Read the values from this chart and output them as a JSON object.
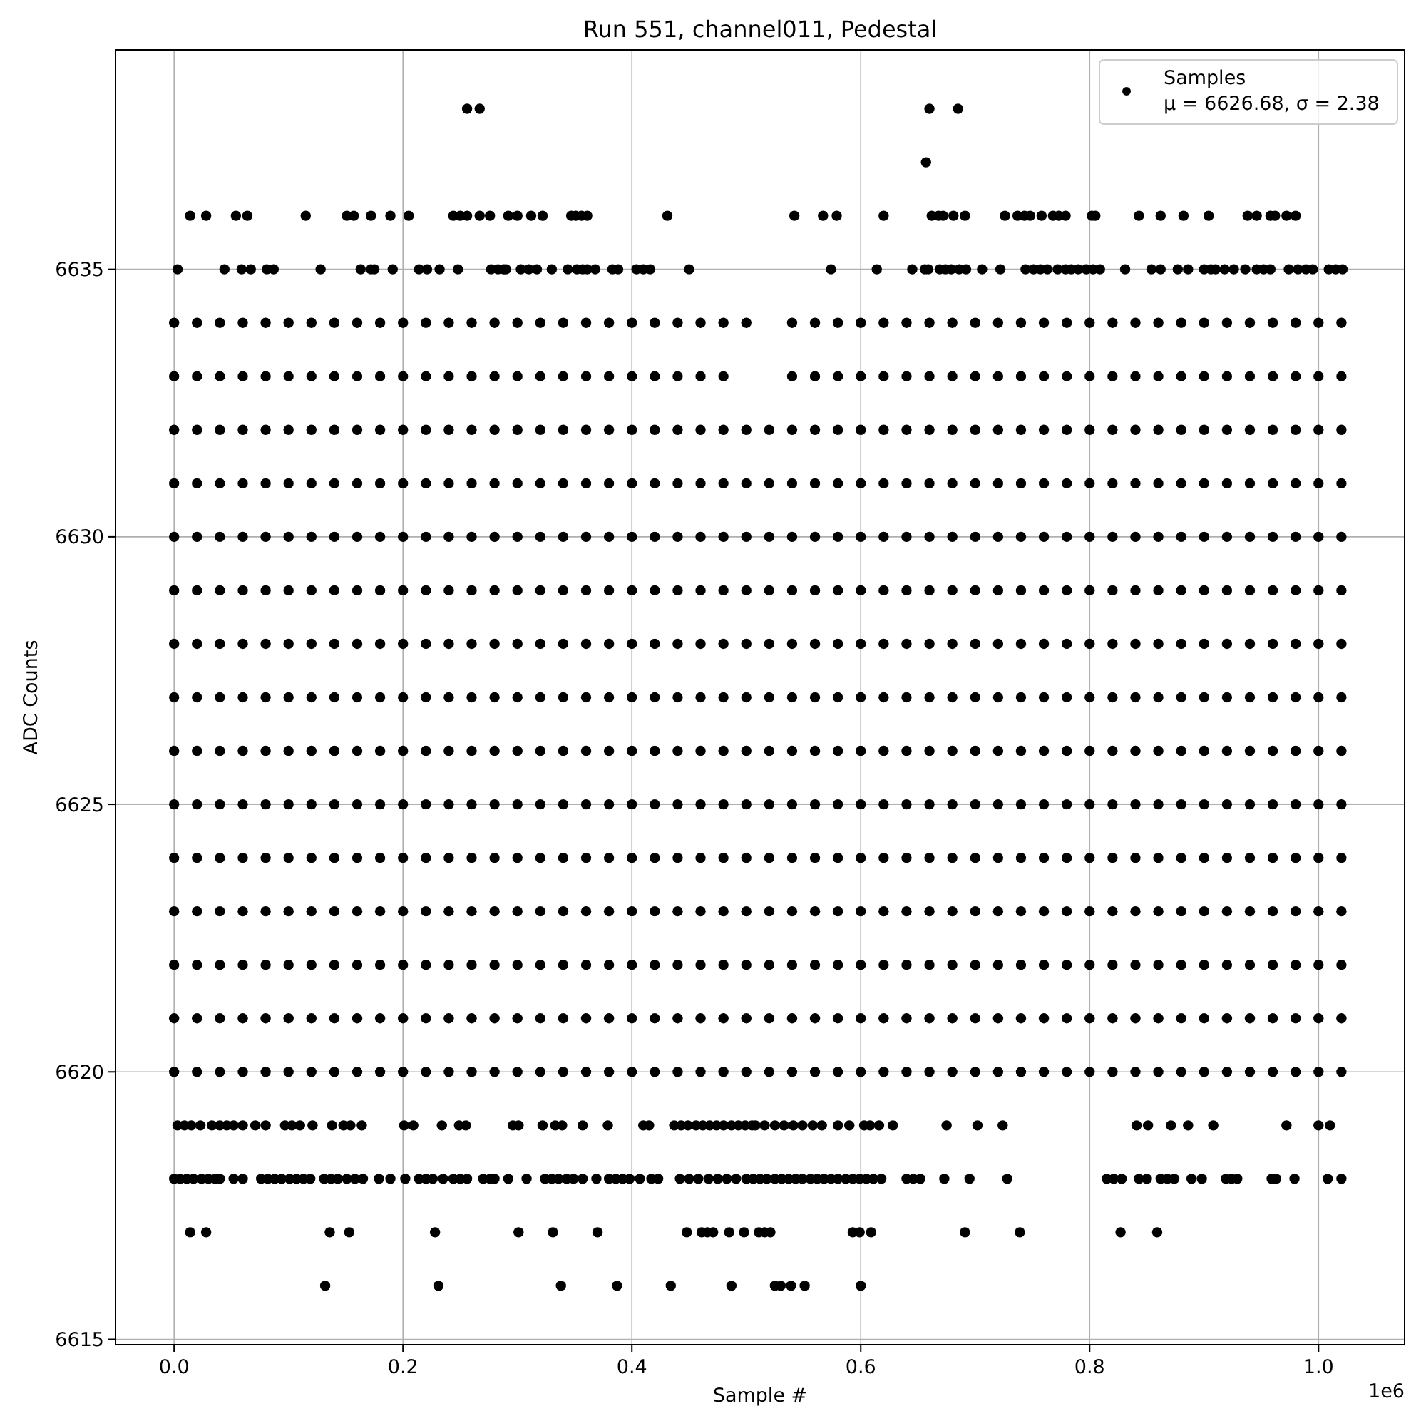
{
  "chart_data": {
    "type": "scatter",
    "title": "Run 551, channel011, Pedestal",
    "xlabel": "Sample #",
    "ylabel": "ADC Counts",
    "annotations": [
      "1e6"
    ],
    "xlim": [
      -0.0512,
      1.0752
    ],
    "ylim": [
      6614.9,
      6639.1
    ],
    "xticks": [
      {
        "value": 0,
        "label": "0.0"
      },
      0.2,
      0.4,
      0.6,
      0.8,
      {
        "value": 1,
        "label": "1.0"
      }
    ],
    "yticks": [
      6615,
      6620,
      6625,
      6630,
      6635
    ],
    "grid": true,
    "legend": "top right",
    "marker": "circle",
    "x": [
      0,
      0.02,
      0.04,
      0.06,
      0.08,
      0.1,
      0.12,
      0.14,
      0.16,
      0.18,
      0.2,
      0.22,
      0.24,
      0.26,
      0.28,
      0.3,
      0.32,
      0.34,
      0.36,
      0.38,
      0.4,
      0.42,
      0.44,
      0.46,
      0.48,
      0.5,
      0.52,
      0.54,
      0.56,
      0.58,
      0.6,
      0.62,
      0.64,
      0.66,
      0.68,
      0.7,
      0.72,
      0.74,
      0.76,
      0.78,
      0.8,
      0.82,
      0.84,
      0.86,
      0.88,
      0.9,
      0.92,
      0.94,
      0.96,
      0.98,
      1,
      1.02
    ],
    "series": [
      {
        "name": "Samples\nμ = 6626.68, σ = 2.38",
        "color": "#000000",
        "values": [
          6620,
          6620,
          6620,
          6620,
          6620,
          6620,
          6620,
          6620,
          6620,
          6620,
          6620,
          6620,
          6620,
          6620,
          6620,
          6620,
          6620,
          6620,
          6620,
          6620,
          6620,
          6620,
          6620,
          6620,
          6620,
          6620,
          6620,
          6620,
          6620,
          6620,
          6620,
          6620,
          6620,
          6620,
          6620,
          6620,
          6620,
          6620,
          6620,
          6620,
          6620,
          6620,
          6620,
          6620,
          6620,
          6620,
          6620,
          6620,
          6620,
          6620,
          6620,
          6620
        ]
      },
      {
        "color": "#000000",
        "values": [
          6621,
          6621,
          6621,
          6621,
          6621,
          6621,
          6621,
          6621,
          6621,
          6621,
          6621,
          6621,
          6621,
          6621,
          6621,
          6621,
          6621,
          6621,
          6621,
          6621,
          6621,
          6621,
          6621,
          6621,
          6621,
          6621,
          6621,
          6621,
          6621,
          6621,
          6621,
          6621,
          6621,
          6621,
          6621,
          6621,
          6621,
          6621,
          6621,
          6621,
          6621,
          6621,
          6621,
          6621,
          6621,
          6621,
          6621,
          6621,
          6621,
          6621,
          6621,
          6621
        ]
      },
      {
        "color": "#000000",
        "values": [
          6622,
          6622,
          6622,
          6622,
          6622,
          6622,
          6622,
          6622,
          6622,
          6622,
          6622,
          6622,
          6622,
          6622,
          6622,
          6622,
          6622,
          6622,
          6622,
          6622,
          6622,
          6622,
          6622,
          6622,
          6622,
          6622,
          6622,
          6622,
          6622,
          6622,
          6622,
          6622,
          6622,
          6622,
          6622,
          6622,
          6622,
          6622,
          6622,
          6622,
          6622,
          6622,
          6622,
          6622,
          6622,
          6622,
          6622,
          6622,
          6622,
          6622,
          6622,
          6622
        ]
      },
      {
        "color": "#000000",
        "values": [
          6623,
          6623,
          6623,
          6623,
          6623,
          6623,
          6623,
          6623,
          6623,
          6623,
          6623,
          6623,
          6623,
          6623,
          6623,
          6623,
          6623,
          6623,
          6623,
          6623,
          6623,
          6623,
          6623,
          6623,
          6623,
          6623,
          6623,
          6623,
          6623,
          6623,
          6623,
          6623,
          6623,
          6623,
          6623,
          6623,
          6623,
          6623,
          6623,
          6623,
          6623,
          6623,
          6623,
          6623,
          6623,
          6623,
          6623,
          6623,
          6623,
          6623,
          6623,
          6623
        ]
      },
      {
        "color": "#000000",
        "values": [
          6624,
          6624,
          6624,
          6624,
          6624,
          6624,
          6624,
          6624,
          6624,
          6624,
          6624,
          6624,
          6624,
          6624,
          6624,
          6624,
          6624,
          6624,
          6624,
          6624,
          6624,
          6624,
          6624,
          6624,
          6624,
          6624,
          6624,
          6624,
          6624,
          6624,
          6624,
          6624,
          6624,
          6624,
          6624,
          6624,
          6624,
          6624,
          6624,
          6624,
          6624,
          6624,
          6624,
          6624,
          6624,
          6624,
          6624,
          6624,
          6624,
          6624,
          6624,
          6624
        ]
      },
      {
        "color": "#000000",
        "values": [
          6625,
          6625,
          6625,
          6625,
          6625,
          6625,
          6625,
          6625,
          6625,
          6625,
          6625,
          6625,
          6625,
          6625,
          6625,
          6625,
          6625,
          6625,
          6625,
          6625,
          6625,
          6625,
          6625,
          6625,
          6625,
          6625,
          6625,
          6625,
          6625,
          6625,
          6625,
          6625,
          6625,
          6625,
          6625,
          6625,
          6625,
          6625,
          6625,
          6625,
          6625,
          6625,
          6625,
          6625,
          6625,
          6625,
          6625,
          6625,
          6625,
          6625,
          6625,
          6625
        ]
      },
      {
        "color": "#000000",
        "values": [
          6626,
          6626,
          6626,
          6626,
          6626,
          6626,
          6626,
          6626,
          6626,
          6626,
          6626,
          6626,
          6626,
          6626,
          6626,
          6626,
          6626,
          6626,
          6626,
          6626,
          6626,
          6626,
          6626,
          6626,
          6626,
          6626,
          6626,
          6626,
          6626,
          6626,
          6626,
          6626,
          6626,
          6626,
          6626,
          6626,
          6626,
          6626,
          6626,
          6626,
          6626,
          6626,
          6626,
          6626,
          6626,
          6626,
          6626,
          6626,
          6626,
          6626,
          6626,
          6626
        ]
      },
      {
        "color": "#000000",
        "values": [
          6627,
          6627,
          6627,
          6627,
          6627,
          6627,
          6627,
          6627,
          6627,
          6627,
          6627,
          6627,
          6627,
          6627,
          6627,
          6627,
          6627,
          6627,
          6627,
          6627,
          6627,
          6627,
          6627,
          6627,
          6627,
          6627,
          6627,
          6627,
          6627,
          6627,
          6627,
          6627,
          6627,
          6627,
          6627,
          6627,
          6627,
          6627,
          6627,
          6627,
          6627,
          6627,
          6627,
          6627,
          6627,
          6627,
          6627,
          6627,
          6627,
          6627,
          6627,
          6627
        ]
      },
      {
        "color": "#000000",
        "values": [
          6628,
          6628,
          6628,
          6628,
          6628,
          6628,
          6628,
          6628,
          6628,
          6628,
          6628,
          6628,
          6628,
          6628,
          6628,
          6628,
          6628,
          6628,
          6628,
          6628,
          6628,
          6628,
          6628,
          6628,
          6628,
          6628,
          6628,
          6628,
          6628,
          6628,
          6628,
          6628,
          6628,
          6628,
          6628,
          6628,
          6628,
          6628,
          6628,
          6628,
          6628,
          6628,
          6628,
          6628,
          6628,
          6628,
          6628,
          6628,
          6628,
          6628,
          6628,
          6628
        ]
      },
      {
        "color": "#000000",
        "values": [
          6629,
          6629,
          6629,
          6629,
          6629,
          6629,
          6629,
          6629,
          6629,
          6629,
          6629,
          6629,
          6629,
          6629,
          6629,
          6629,
          6629,
          6629,
          6629,
          6629,
          6629,
          6629,
          6629,
          6629,
          6629,
          6629,
          6629,
          6629,
          6629,
          6629,
          6629,
          6629,
          6629,
          6629,
          6629,
          6629,
          6629,
          6629,
          6629,
          6629,
          6629,
          6629,
          6629,
          6629,
          6629,
          6629,
          6629,
          6629,
          6629,
          6629,
          6629,
          6629
        ]
      },
      {
        "color": "#000000",
        "values": [
          6630,
          6630,
          6630,
          6630,
          6630,
          6630,
          6630,
          6630,
          6630,
          6630,
          6630,
          6630,
          6630,
          6630,
          6630,
          6630,
          6630,
          6630,
          6630,
          6630,
          6630,
          6630,
          6630,
          6630,
          6630,
          6630,
          6630,
          6630,
          6630,
          6630,
          6630,
          6630,
          6630,
          6630,
          6630,
          6630,
          6630,
          6630,
          6630,
          6630,
          6630,
          6630,
          6630,
          6630,
          6630,
          6630,
          6630,
          6630,
          6630,
          6630,
          6630,
          6630
        ]
      },
      {
        "color": "#000000",
        "values": [
          6631,
          6631,
          6631,
          6631,
          6631,
          6631,
          6631,
          6631,
          6631,
          6631,
          6631,
          6631,
          6631,
          6631,
          6631,
          6631,
          6631,
          6631,
          6631,
          6631,
          6631,
          6631,
          6631,
          6631,
          6631,
          6631,
          6631,
          6631,
          6631,
          6631,
          6631,
          6631,
          6631,
          6631,
          6631,
          6631,
          6631,
          6631,
          6631,
          6631,
          6631,
          6631,
          6631,
          6631,
          6631,
          6631,
          6631,
          6631,
          6631,
          6631,
          6631,
          6631
        ]
      },
      {
        "color": "#000000",
        "values": [
          6632,
          6632,
          6632,
          6632,
          6632,
          6632,
          6632,
          6632,
          6632,
          6632,
          6632,
          6632,
          6632,
          6632,
          6632,
          6632,
          6632,
          6632,
          6632,
          6632,
          6632,
          6632,
          6632,
          6632,
          6632,
          6632,
          6632,
          6632,
          6632,
          6632,
          6632,
          6632,
          6632,
          6632,
          6632,
          6632,
          6632,
          6632,
          6632,
          6632,
          6632,
          6632,
          6632,
          6632,
          6632,
          6632,
          6632,
          6632,
          6632,
          6632,
          6632,
          6632
        ]
      },
      {
        "color": "#000000",
        "values": [
          6633,
          6633,
          6633,
          6633,
          6633,
          6633,
          6633,
          6633,
          6633,
          6633,
          6633,
          6633,
          6633,
          6633,
          6633,
          6633,
          6633,
          6633,
          6633,
          6633,
          6633,
          6633,
          6633,
          6633,
          6633,
          null,
          null,
          6633,
          6633,
          6633,
          6633,
          6633,
          6633,
          6633,
          6633,
          6633,
          6633,
          6633,
          6633,
          6633,
          6633,
          6633,
          6633,
          6633,
          6633,
          6633,
          6633,
          6633,
          6633,
          6633,
          6633,
          6633
        ]
      },
      {
        "color": "#000000",
        "values": [
          6634,
          6634,
          6634,
          6634,
          6634,
          6634,
          6634,
          6634,
          6634,
          6634,
          6634,
          6634,
          6634,
          6634,
          6634,
          6634,
          6634,
          6634,
          6634,
          6634,
          6634,
          6634,
          6634,
          6634,
          6634,
          6634,
          null,
          6634,
          6634,
          6634,
          6634,
          6634,
          6634,
          6634,
          6634,
          6634,
          6634,
          6634,
          6634,
          6634,
          6634,
          6634,
          6634,
          6634,
          6634,
          6634,
          6634,
          6634,
          6634,
          6634,
          6634,
          6634
        ]
      },
      {
        "color": "#000000",
        "x": [
          0.003,
          0.044,
          0.059,
          0.067,
          0.081,
          0.087,
          0.128,
          0.163,
          0.172,
          0.175,
          0.191,
          0.214,
          0.221,
          0.232,
          0.248,
          0.277,
          0.283,
          0.288,
          0.29,
          0.303,
          0.31,
          0.317,
          0.33,
          0.344,
          0.352,
          0.357,
          0.361,
          0.368,
          0.383,
          0.388,
          0.404,
          0.41,
          0.416,
          0.45,
          0.574,
          0.614,
          0.645,
          0.656,
          0.659,
          0.669,
          0.674,
          0.679,
          0.686,
          0.692,
          0.706,
          0.722,
          0.744,
          0.751,
          0.757,
          0.763,
          0.772,
          0.779,
          0.784,
          0.79,
          0.797,
          0.803,
          0.809,
          0.831,
          0.854,
          0.862,
          0.877,
          0.886,
          0.9,
          0.906,
          0.91,
          0.918,
          0.926,
          0.936,
          0.946,
          0.952,
          0.958,
          0.974,
          0.982,
          0.989,
          0.995,
          1.009,
          1.015,
          1.021
        ],
        "values": [
          6635,
          6635,
          6635,
          6635,
          6635,
          6635,
          6635,
          6635,
          6635,
          6635,
          6635,
          6635,
          6635,
          6635,
          6635,
          6635,
          6635,
          6635,
          6635,
          6635,
          6635,
          6635,
          6635,
          6635,
          6635,
          6635,
          6635,
          6635,
          6635,
          6635,
          6635,
          6635,
          6635,
          6635,
          6635,
          6635,
          6635,
          6635,
          6635,
          6635,
          6635,
          6635,
          6635,
          6635,
          6635,
          6635,
          6635,
          6635,
          6635,
          6635,
          6635,
          6635,
          6635,
          6635,
          6635,
          6635,
          6635,
          6635,
          6635,
          6635,
          6635,
          6635,
          6635,
          6635,
          6635,
          6635,
          6635,
          6635,
          6635,
          6635,
          6635,
          6635,
          6635,
          6635,
          6635,
          6635,
          6635,
          6635
        ]
      },
      {
        "color": "#000000",
        "x": [
          0.014,
          0.028,
          0.054,
          0.064,
          0.115,
          0.151,
          0.157,
          0.172,
          0.189,
          0.205,
          0.244,
          0.25,
          0.256,
          0.267,
          0.276,
          0.292,
          0.3,
          0.312,
          0.322,
          0.347,
          0.351,
          0.356,
          0.361,
          0.431,
          0.542,
          0.567,
          0.579,
          0.62,
          0.662,
          0.668,
          0.672,
          0.681,
          0.691,
          0.726,
          0.737,
          0.743,
          0.748,
          0.758,
          0.768,
          0.773,
          0.779,
          0.802,
          0.805,
          0.843,
          0.862,
          0.882,
          0.904,
          0.938,
          0.946,
          0.958,
          0.962,
          0.972,
          0.98
        ],
        "values": [
          6636,
          6636,
          6636,
          6636,
          6636,
          6636,
          6636,
          6636,
          6636,
          6636,
          6636,
          6636,
          6636,
          6636,
          6636,
          6636,
          6636,
          6636,
          6636,
          6636,
          6636,
          6636,
          6636,
          6636,
          6636,
          6636,
          6636,
          6636,
          6636,
          6636,
          6636,
          6636,
          6636,
          6636,
          6636,
          6636,
          6636,
          6636,
          6636,
          6636,
          6636,
          6636,
          6636,
          6636,
          6636,
          6636,
          6636,
          6636,
          6636,
          6636,
          6636,
          6636,
          6636
        ]
      },
      {
        "color": "#000000",
        "x": [
          0.256,
          0.267,
          0.657,
          0.66,
          0.685
        ],
        "values": [
          6638,
          6638,
          6637,
          6638,
          6638
        ]
      },
      {
        "color": "#000000",
        "x": [
          0.003,
          0.009,
          0.015,
          0.023,
          0.033,
          0.04,
          0.046,
          0.052,
          0.06,
          0.071,
          0.08,
          0.097,
          0.103,
          0.11,
          0.121,
          0.138,
          0.148,
          0.154,
          0.164,
          0.201,
          0.209,
          0.234,
          0.249,
          0.255,
          0.296,
          0.301,
          0.322,
          0.333,
          0.339,
          0.357,
          0.379,
          0.41,
          0.415,
          0.437,
          0.443,
          0.449,
          0.456,
          0.462,
          0.468,
          0.474,
          0.48,
          0.487,
          0.493,
          0.499,
          0.505,
          0.508,
          0.516,
          0.525,
          0.533,
          0.541,
          0.549,
          0.558,
          0.566,
          0.58,
          0.59,
          0.603,
          0.608,
          0.616,
          0.628,
          0.675,
          0.702,
          0.724,
          0.841,
          0.851,
          0.871,
          0.886,
          0.908,
          0.972,
          1,
          1.01
        ],
        "values": [
          6619,
          6619,
          6619,
          6619,
          6619,
          6619,
          6619,
          6619,
          6619,
          6619,
          6619,
          6619,
          6619,
          6619,
          6619,
          6619,
          6619,
          6619,
          6619,
          6619,
          6619,
          6619,
          6619,
          6619,
          6619,
          6619,
          6619,
          6619,
          6619,
          6619,
          6619,
          6619,
          6619,
          6619,
          6619,
          6619,
          6619,
          6619,
          6619,
          6619,
          6619,
          6619,
          6619,
          6619,
          6619,
          6619,
          6619,
          6619,
          6619,
          6619,
          6619,
          6619,
          6619,
          6619,
          6619,
          6619,
          6619,
          6619,
          6619,
          6619,
          6619,
          6619,
          6619,
          6619,
          6619,
          6619,
          6619,
          6619,
          6619,
          6619
        ]
      },
      {
        "color": "#000000",
        "x": [
          0,
          0.005,
          0.011,
          0.017,
          0.024,
          0.03,
          0.036,
          0.04,
          0.052,
          0.06,
          0.076,
          0.082,
          0.088,
          0.094,
          0.101,
          0.107,
          0.113,
          0.119,
          0.131,
          0.137,
          0.143,
          0.151,
          0.158,
          0.165,
          0.179,
          0.189,
          0.202,
          0.214,
          0.22,
          0.226,
          0.235,
          0.244,
          0.25,
          0.256,
          0.27,
          0.276,
          0.28,
          0.292,
          0.308,
          0.324,
          0.33,
          0.336,
          0.343,
          0.349,
          0.357,
          0.369,
          0.38,
          0.386,
          0.392,
          0.398,
          0.407,
          0.417,
          0.423,
          0.442,
          0.45,
          0.458,
          0.467,
          0.475,
          0.483,
          0.491,
          0.5,
          0.506,
          0.512,
          0.518,
          0.525,
          0.531,
          0.537,
          0.543,
          0.549,
          0.556,
          0.562,
          0.568,
          0.574,
          0.58,
          0.587,
          0.593,
          0.599,
          0.605,
          0.611,
          0.618,
          0.64,
          0.646,
          0.652,
          0.673,
          0.695,
          0.728,
          0.815,
          0.821,
          0.828,
          0.843,
          0.85,
          0.862,
          0.868,
          0.874,
          0.889,
          0.898,
          0.919,
          0.924,
          0.929,
          0.959,
          0.963,
          0.979,
          1.008,
          1.02
        ],
        "values": [
          6618,
          6618,
          6618,
          6618,
          6618,
          6618,
          6618,
          6618,
          6618,
          6618,
          6618,
          6618,
          6618,
          6618,
          6618,
          6618,
          6618,
          6618,
          6618,
          6618,
          6618,
          6618,
          6618,
          6618,
          6618,
          6618,
          6618,
          6618,
          6618,
          6618,
          6618,
          6618,
          6618,
          6618,
          6618,
          6618,
          6618,
          6618,
          6618,
          6618,
          6618,
          6618,
          6618,
          6618,
          6618,
          6618,
          6618,
          6618,
          6618,
          6618,
          6618,
          6618,
          6618,
          6618,
          6618,
          6618,
          6618,
          6618,
          6618,
          6618,
          6618,
          6618,
          6618,
          6618,
          6618,
          6618,
          6618,
          6618,
          6618,
          6618,
          6618,
          6618,
          6618,
          6618,
          6618,
          6618,
          6618,
          6618,
          6618,
          6618,
          6618,
          6618,
          6618,
          6618,
          6618,
          6618,
          6618,
          6618,
          6618,
          6618,
          6618,
          6618,
          6618,
          6618,
          6618,
          6618,
          6618,
          6618,
          6618,
          6618,
          6618,
          6618,
          6618,
          6618
        ]
      },
      {
        "color": "#000000",
        "x": [
          0.014,
          0.028,
          0.136,
          0.153,
          0.228,
          0.301,
          0.331,
          0.37,
          0.448,
          0.461,
          0.466,
          0.471,
          0.485,
          0.498,
          0.511,
          0.516,
          0.521,
          0.593,
          0.599,
          0.609,
          0.691,
          0.739,
          0.827,
          0.859
        ],
        "values": [
          6617,
          6617,
          6617,
          6617,
          6617,
          6617,
          6617,
          6617,
          6617,
          6617,
          6617,
          6617,
          6617,
          6617,
          6617,
          6617,
          6617,
          6617,
          6617,
          6617,
          6617,
          6617,
          6617,
          6617
        ]
      },
      {
        "color": "#000000",
        "x": [
          0.132,
          0.231,
          0.338,
          0.387,
          0.434,
          0.487,
          0.525,
          0.53,
          0.539,
          0.551,
          0.6
        ],
        "values": [
          6616,
          6616,
          6616,
          6616,
          6616,
          6616,
          6616,
          6616,
          6616,
          6616,
          6616
        ]
      }
    ]
  }
}
